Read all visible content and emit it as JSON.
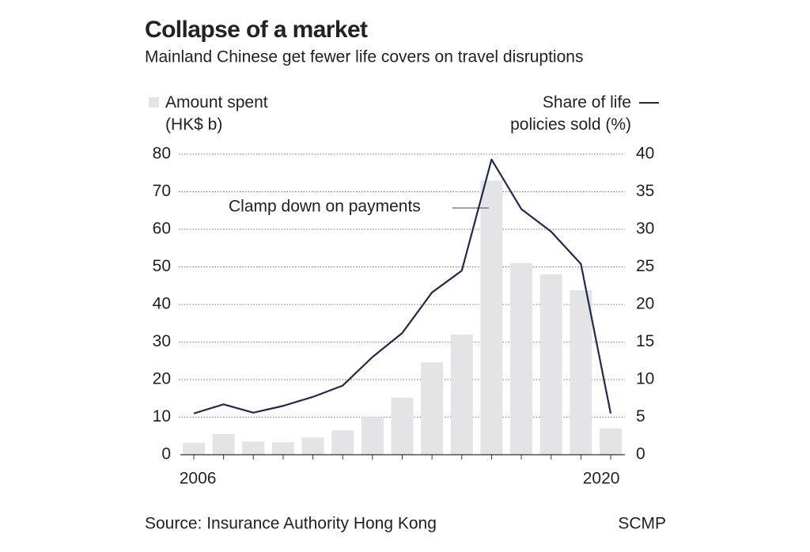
{
  "chart_data": {
    "type": "combo",
    "title": "Collapse of a market",
    "subtitle": "Mainland Chinese get fewer life covers on travel disruptions",
    "categories": [
      "2006",
      null,
      null,
      null,
      null,
      null,
      null,
      null,
      null,
      null,
      null,
      null,
      null,
      null,
      "2020"
    ],
    "series": [
      {
        "name": "Amount spent\n(HK$ b)",
        "type": "bar",
        "color": "#e4e4e7",
        "values": [
          3.2,
          5.5,
          3.5,
          3.3,
          4.6,
          6.5,
          10,
          15.2,
          24.6,
          32,
          73,
          51,
          48,
          43.8,
          7
        ]
      },
      {
        "name": "Share of life\npolicies sold (%)",
        "type": "line",
        "axis": "y2",
        "color": "#1f2a4e",
        "values": [
          5.5,
          6.7,
          5.6,
          6.5,
          7.7,
          9.2,
          13,
          16.2,
          21.6,
          24.5,
          39.3,
          32.7,
          29.7,
          25.4,
          5.5
        ]
      }
    ],
    "ylim": [
      0,
      80
    ],
    "yticks": [
      0,
      10,
      20,
      30,
      40,
      50,
      60,
      70,
      80
    ],
    "y2lim": [
      0,
      40
    ],
    "y2ticks": [
      0,
      5,
      10,
      15,
      20,
      25,
      30,
      35,
      40
    ],
    "grid": true,
    "annotation": "Clamp down on payments",
    "source": "Source: Insurance Authority Hong Kong",
    "credit": "SCMP"
  }
}
